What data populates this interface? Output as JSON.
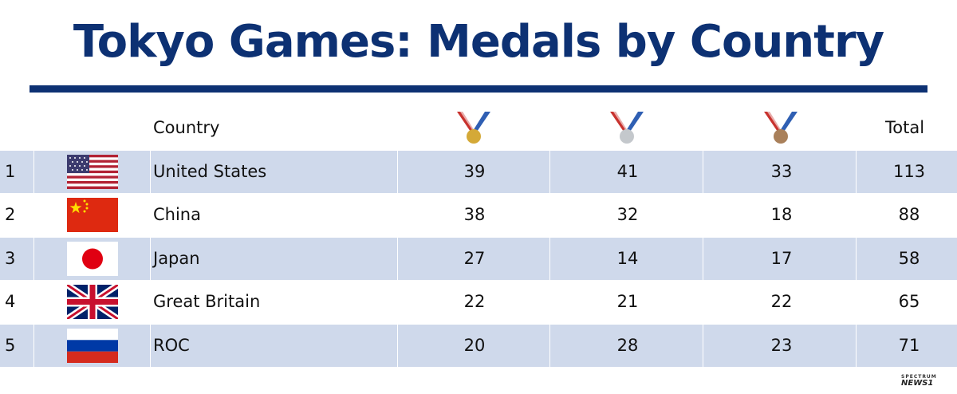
{
  "title": "Tokyo Games: Medals by Country",
  "headers": {
    "country": "Country",
    "total": "Total"
  },
  "medal_icons": [
    "gold-medal-icon",
    "silver-medal-icon",
    "bronze-medal-icon"
  ],
  "colors": {
    "title": "#0d3173",
    "row_shade": "#cfd9eb",
    "gold": "#d4a937",
    "silver": "#c4c8cc",
    "bronze": "#a9805a"
  },
  "rows": [
    {
      "rank": "1",
      "country": "United States",
      "flag": "usa-flag-icon",
      "gold": "39",
      "silver": "41",
      "bronze": "33",
      "total": "113"
    },
    {
      "rank": "2",
      "country": "China",
      "flag": "china-flag-icon",
      "gold": "38",
      "silver": "32",
      "bronze": "18",
      "total": "88"
    },
    {
      "rank": "3",
      "country": "Japan",
      "flag": "japan-flag-icon",
      "gold": "27",
      "silver": "14",
      "bronze": "17",
      "total": "58"
    },
    {
      "rank": "4",
      "country": "Great Britain",
      "flag": "uk-flag-icon",
      "gold": "22",
      "silver": "21",
      "bronze": "22",
      "total": "65"
    },
    {
      "rank": "5",
      "country": "ROC",
      "flag": "russia-flag-icon",
      "gold": "20",
      "silver": "28",
      "bronze": "23",
      "total": "71"
    }
  ],
  "logo": {
    "line1": "SPECTRUM",
    "line2": "NEWS1"
  }
}
